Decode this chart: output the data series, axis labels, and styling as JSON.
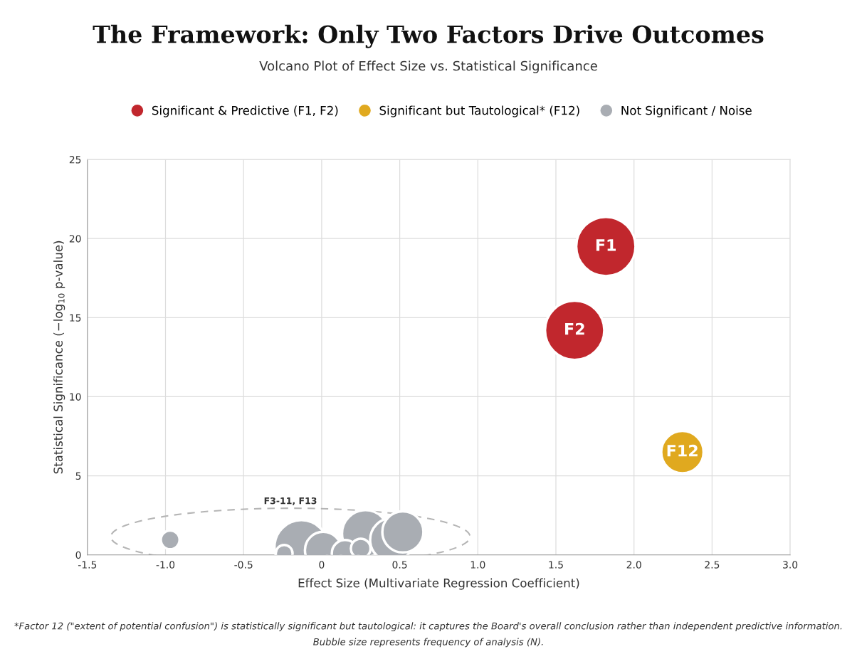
{
  "chart_data": {
    "type": "bubble",
    "title": "The Framework: Only Two Factors Drive Outcomes",
    "subtitle": "Volcano Plot of Effect Size vs. Statistical Significance",
    "xlabel": "Effect Size (Multivariate Regression Coefficient)",
    "ylabel": "Statistical Significance (−log$_{10}$ p-value)",
    "series": [
      {
        "name": "Significant & Predictive (F1, F2)",
        "color": "#c1272d",
        "x": [
          1.82,
          1.62
        ],
        "values": [
          19.5,
          14.2
        ],
        "sizes": [
          1,
          1
        ]
      },
      {
        "name": "Significant but Tautological* (F12)",
        "color": "#e0a91f",
        "x": [
          2.31
        ],
        "values": [
          6.5
        ],
        "sizes": [
          0.51
        ]
      },
      {
        "name": "Not Significant / Noise",
        "color": "#a9adb3",
        "x": [
          -0.97,
          -0.24,
          -0.13,
          0.01,
          0.15,
          0.25,
          0.28,
          0.52,
          0.45
        ],
        "values": [
          0.95,
          0.1,
          0.5,
          0.3,
          0.1,
          0.4,
          1.35,
          1.45,
          0.95
        ],
        "sizes": [
          0.1,
          0.08,
          0.82,
          0.38,
          0.2,
          0.11,
          0.62,
          0.48,
          0.54
        ]
      }
    ],
    "annotations": [
      {
        "text": "F1",
        "x": 1.82,
        "y": 19.5
      },
      {
        "text": "F2",
        "x": 1.62,
        "y": 14.2
      },
      {
        "text": "F12",
        "x": 2.31,
        "y": 6.5
      },
      "F3-11, F13",
      "*Factor 12 (\"extent of potential confusion\") is statistically significant but tautological: it captures the Board's overall conclusion rather than independent predictive information.",
      "Bubble size represents frequency of analysis (N)."
    ],
    "xlim": [
      -1.5,
      3.0
    ],
    "ylim": [
      0,
      25
    ],
    "xticks": [
      -1.5,
      {
        "value": -1.0,
        "label": "-1.0"
      },
      -0.5,
      0,
      0.5,
      {
        "value": 1.0,
        "label": "1.0"
      },
      1.5,
      {
        "value": 2.0,
        "label": "2.0"
      },
      2.5,
      {
        "value": 3.0,
        "label": "3.0"
      }
    ],
    "yticks": [
      0,
      5,
      10,
      15,
      20,
      25
    ],
    "grid": true,
    "legend": "top"
  }
}
